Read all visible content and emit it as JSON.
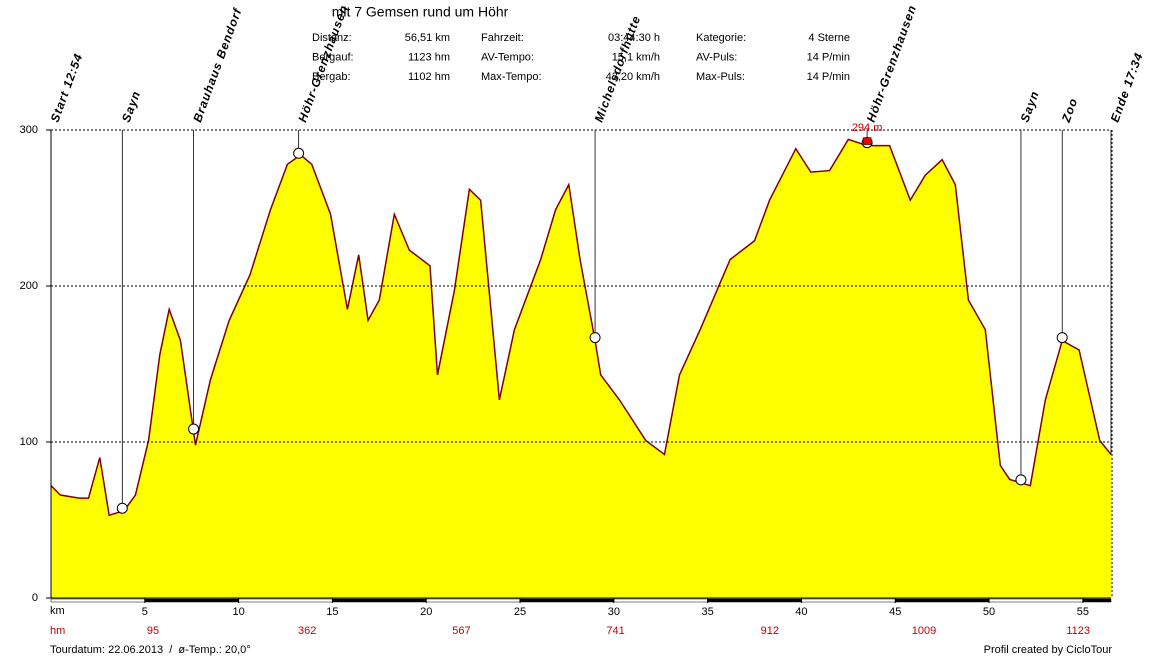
{
  "chart_data": {
    "type": "area",
    "title": "mit 7 Gemsen rund um Höhr",
    "info": [
      {
        "label": "Distanz:",
        "value": "56,51 km"
      },
      {
        "label": "Bergauf:",
        "value": "1123 hm"
      },
      {
        "label": "Bergab:",
        "value": "1102 hm"
      },
      {
        "label": "Fahrzeit:",
        "value": "03:44:30 h"
      },
      {
        "label": "AV-Tempo:",
        "value": "15,1 km/h"
      },
      {
        "label": "Max-Tempo:",
        "value": "43,20 km/h"
      },
      {
        "label": "Kategorie:",
        "value": "4 Sterne"
      },
      {
        "label": "AV-Puls:",
        "value": "14 P/min"
      },
      {
        "label": "Max-Puls:",
        "value": "14 P/min"
      }
    ],
    "xlabel": "km",
    "hm_label": "hm",
    "hm_values": [
      95,
      362,
      567,
      741,
      912,
      1009,
      1123
    ],
    "x": [
      0,
      0.5,
      1.5,
      2,
      2.6,
      3.1,
      3.9,
      4.5,
      5.2,
      5.8,
      6.3,
      6.9,
      7.7,
      8.5,
      9.5,
      10.6,
      11.7,
      12.6,
      13.3,
      13.9,
      14.9,
      15.8,
      16.4,
      16.9,
      17.5,
      18.3,
      19.1,
      20.2,
      20.6,
      21.5,
      22.3,
      22.9,
      23.9,
      24.7,
      26.1,
      26.9,
      27.6,
      28.2,
      29.0,
      29.3,
      30.3,
      31.7,
      32.7,
      33.5,
      34.6,
      36.2,
      37.5,
      38.3,
      39.7,
      40.5,
      41.5,
      42.5,
      43.5,
      44.7,
      45.8,
      46.6,
      47.5,
      48.2,
      48.9,
      49.8,
      50.6,
      51.1,
      52.2,
      53.0,
      53.9,
      54.8,
      55.9,
      56.5
    ],
    "values": [
      72,
      66,
      64,
      64,
      90,
      53,
      56,
      66,
      101,
      156,
      185,
      165,
      98,
      140,
      178,
      207,
      249,
      278,
      284,
      278,
      246,
      185,
      220,
      178,
      191,
      246,
      223,
      213,
      143,
      197,
      262,
      255,
      127,
      172,
      217,
      249,
      265,
      217,
      165,
      143,
      127,
      101,
      92,
      143,
      172,
      217,
      229,
      255,
      288,
      273,
      274,
      294,
      290,
      290,
      255,
      271,
      281,
      265,
      191,
      172,
      85,
      76,
      72,
      127,
      165,
      159,
      101,
      92
    ],
    "color": "#ffff00",
    "line_color": "#800000",
    "xlim": [
      0,
      56.5
    ],
    "ylim": [
      0,
      300
    ],
    "xticks": [
      5,
      10,
      15,
      20,
      25,
      30,
      35,
      40,
      45,
      50,
      55
    ],
    "yticks": [
      0,
      100,
      200,
      300
    ],
    "grid": true,
    "waypoints": [
      {
        "label": "Start 12:54",
        "km": 0
      },
      {
        "label": "Sayn",
        "km": 3.8
      },
      {
        "label": "Brauhaus Bendorf",
        "km": 7.6
      },
      {
        "label": "Höhr-Grenzhausen",
        "km": 13.2
      },
      {
        "label": "Michelsdorfhütte",
        "km": 29.0
      },
      {
        "label": "Höhr-Grenzhausen",
        "km": 43.5
      },
      {
        "label": "Sayn",
        "km": 51.7
      },
      {
        "label": "Zoo",
        "km": 53.9
      },
      {
        "label": "Ende 17:34",
        "km": 56.5
      }
    ],
    "annotation": {
      "text": "294 m",
      "x": 43.5
    },
    "footer_left": "Tourdatum: 22.06.2013  /  ø-Temp.: 20,0°",
    "footer_right": "Profil created by CicloTour"
  }
}
